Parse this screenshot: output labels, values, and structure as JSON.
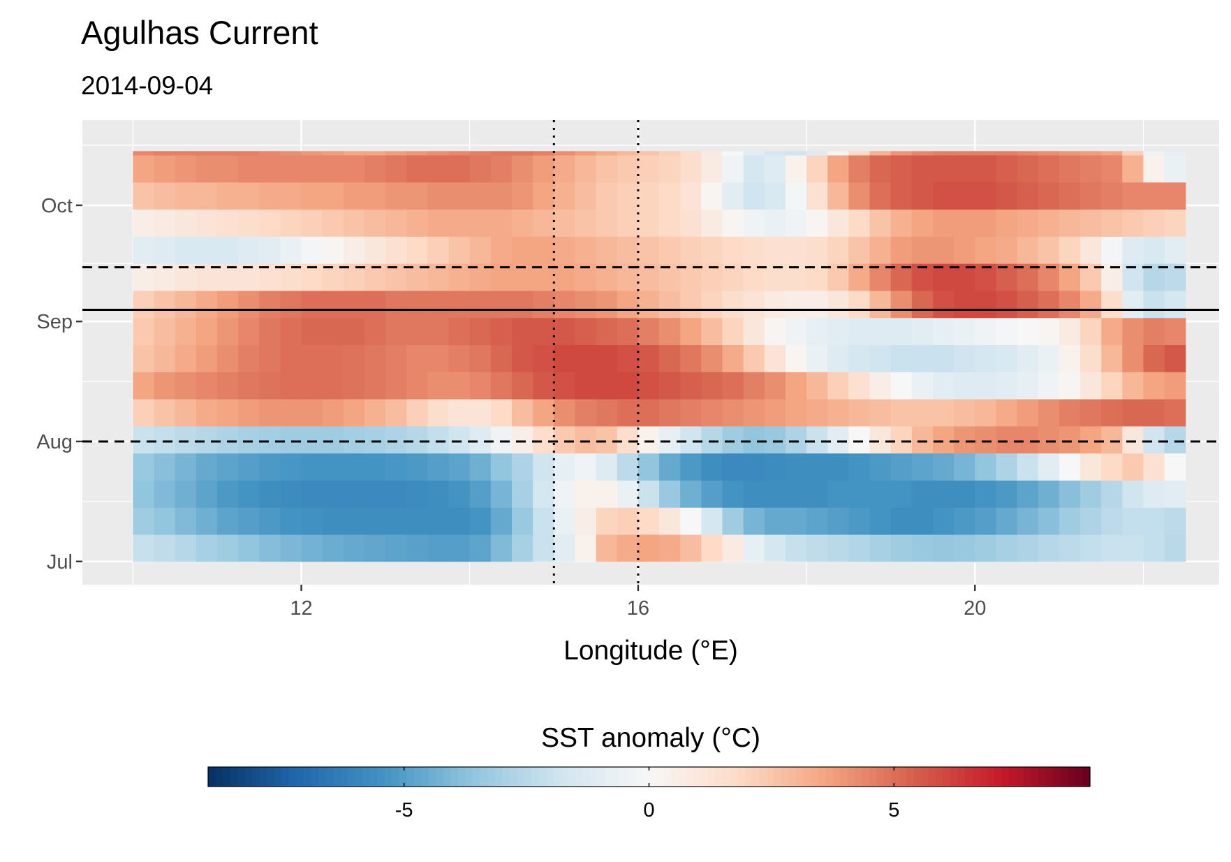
{
  "chart_data": {
    "type": "heatmap",
    "title": "Agulhas Current",
    "subtitle": "2014-09-04",
    "xlabel": "Longitude (°E)",
    "ylabel": "",
    "x_ticks": [
      12,
      16,
      20
    ],
    "y_ticks": [
      "Jul",
      "Aug",
      "Sep",
      "Oct"
    ],
    "y_tick_dates": [
      "2014-07-01",
      "2014-08-01",
      "2014-09-01",
      "2014-10-01"
    ],
    "xlim": [
      9.4,
      22.9
    ],
    "ylim": [
      "2014-06-25",
      "2014-10-23"
    ],
    "data_range": {
      "lon": [
        10.0,
        22.5
      ],
      "date": [
        "2014-07-01",
        "2014-10-15"
      ]
    },
    "grid": true,
    "legend": {
      "title": "SST anomaly (°C)",
      "position": "bottom",
      "ticks": [
        -5,
        0,
        5
      ],
      "tick_labels": [
        "-5",
        "0",
        "5"
      ],
      "limits": [
        -9,
        9
      ],
      "colors": {
        "neg": [
          "#053061",
          "#2166ac",
          "#4393c3",
          "#92c5de",
          "#d1e5f0",
          "#f7f7f7"
        ],
        "pos": [
          "#f7f7f7",
          "#fddbc7",
          "#f4a582",
          "#d6604d",
          "#c51a2a",
          "#67001f"
        ]
      }
    },
    "reference_lines": {
      "event_date": "2014-09-04",
      "window_dates": [
        "2014-08-01",
        "2014-09-15"
      ],
      "longitudes": [
        15.0,
        16.0
      ]
    },
    "x": [
      10.0,
      10.25,
      10.5,
      10.75,
      11.0,
      11.25,
      11.5,
      11.75,
      12.0,
      12.25,
      12.5,
      12.75,
      13.0,
      13.25,
      13.5,
      13.75,
      14.0,
      14.25,
      14.5,
      14.75,
      15.0,
      15.25,
      15.5,
      15.75,
      16.0,
      16.25,
      16.5,
      16.75,
      17.0,
      17.25,
      17.5,
      17.75,
      18.0,
      18.25,
      18.5,
      18.75,
      19.0,
      19.25,
      19.5,
      19.75,
      20.0,
      20.25,
      20.5,
      20.75,
      21.0,
      21.25,
      21.5,
      21.75,
      22.0,
      22.25
    ],
    "y": [
      "2014-07-01",
      "2014-07-08",
      "2014-07-15",
      "2014-07-22",
      "2014-07-29",
      "2014-08-05",
      "2014-08-12",
      "2014-08-19",
      "2014-08-26",
      "2014-09-02",
      "2014-09-09",
      "2014-09-16",
      "2014-09-23",
      "2014-09-30",
      "2014-10-07",
      "2014-10-14"
    ],
    "z": [
      [
        -2.1,
        -2.3,
        -2.6,
        -3.0,
        -3.2,
        -3.6,
        -3.9,
        -4.1,
        -4.3,
        -4.5,
        -4.6,
        -4.7,
        -4.8,
        -4.9,
        -5.0,
        -5.0,
        -4.8,
        -4.0,
        -3.0,
        -2.0,
        -1.0,
        0.4,
        3.0,
        3.4,
        3.6,
        3.4,
        2.8,
        1.8,
        0.8,
        -0.8,
        -1.6,
        -2.1,
        -2.3,
        -2.5,
        -2.7,
        -3.0,
        -3.2,
        -3.4,
        -3.5,
        -3.4,
        -3.2,
        -3.0,
        -2.8,
        -2.6,
        -2.4,
        -2.2,
        -2.0,
        -2.0,
        -2.2,
        -2.5
      ],
      [
        -3.2,
        -3.6,
        -4.0,
        -4.4,
        -4.8,
        -5.0,
        -5.2,
        -5.4,
        -5.5,
        -5.6,
        -5.6,
        -5.6,
        -5.6,
        -5.6,
        -5.6,
        -5.6,
        -5.4,
        -4.6,
        -3.4,
        -2.0,
        -0.6,
        0.6,
        2.0,
        2.2,
        1.8,
        1.0,
        0.0,
        -1.6,
        -3.2,
        -4.2,
        -4.6,
        -4.6,
        -4.8,
        -5.0,
        -5.2,
        -5.4,
        -5.6,
        -5.6,
        -5.4,
        -5.2,
        -5.0,
        -4.6,
        -4.2,
        -3.8,
        -3.2,
        -2.8,
        -2.4,
        -2.2,
        -2.2,
        -2.4
      ],
      [
        -3.6,
        -4.0,
        -4.4,
        -4.8,
        -5.2,
        -5.4,
        -5.6,
        -5.7,
        -5.8,
        -5.8,
        -5.8,
        -5.8,
        -5.8,
        -5.7,
        -5.6,
        -5.4,
        -5.0,
        -4.2,
        -3.0,
        -1.6,
        -0.4,
        0.4,
        0.4,
        -0.6,
        -2.0,
        -3.4,
        -4.4,
        -5.0,
        -5.4,
        -5.6,
        -5.6,
        -5.6,
        -5.6,
        -5.4,
        -5.4,
        -5.4,
        -5.4,
        -5.6,
        -5.6,
        -5.6,
        -5.4,
        -5.2,
        -4.8,
        -4.4,
        -3.8,
        -3.2,
        -2.6,
        -1.8,
        -1.2,
        -1.0
      ],
      [
        -3.4,
        -3.8,
        -4.2,
        -4.6,
        -4.8,
        -5.0,
        -5.2,
        -5.3,
        -5.4,
        -5.4,
        -5.4,
        -5.4,
        -5.3,
        -5.2,
        -5.0,
        -4.8,
        -4.4,
        -3.6,
        -2.8,
        -1.8,
        -0.8,
        -0.4,
        -1.2,
        -2.4,
        -3.6,
        -4.6,
        -5.2,
        -5.6,
        -5.8,
        -5.8,
        -5.7,
        -5.6,
        -5.6,
        -5.6,
        -5.4,
        -5.2,
        -5.0,
        -4.8,
        -4.6,
        -4.2,
        -3.6,
        -2.8,
        -2.0,
        -1.0,
        0.0,
        1.0,
        1.8,
        2.4,
        1.4,
        0.0
      ],
      [
        -2.0,
        -2.2,
        -2.4,
        -2.6,
        -2.8,
        -3.0,
        -3.1,
        -3.2,
        -3.2,
        -3.2,
        -3.1,
        -3.0,
        -2.8,
        -2.6,
        -2.2,
        -1.8,
        -1.2,
        -0.4,
        0.6,
        1.6,
        2.4,
        2.8,
        2.6,
        1.6,
        0.4,
        -0.8,
        -1.8,
        -2.6,
        -3.2,
        -3.6,
        -3.4,
        -2.8,
        -2.0,
        -1.0,
        0.0,
        1.0,
        2.0,
        3.0,
        3.6,
        4.0,
        4.2,
        4.4,
        4.4,
        4.2,
        4.0,
        3.6,
        3.0,
        1.0,
        -1.8,
        -2.6
      ],
      [
        2.2,
        2.6,
        3.0,
        3.4,
        3.6,
        3.8,
        4.0,
        4.0,
        4.0,
        3.8,
        3.6,
        3.2,
        2.8,
        2.2,
        1.6,
        1.2,
        1.2,
        1.8,
        2.8,
        3.6,
        4.2,
        4.6,
        4.8,
        5.0,
        5.0,
        4.8,
        4.6,
        4.4,
        4.2,
        4.0,
        3.8,
        3.6,
        3.4,
        3.2,
        3.0,
        2.8,
        2.6,
        2.6,
        2.6,
        2.8,
        3.0,
        3.4,
        3.8,
        4.2,
        4.6,
        4.8,
        5.0,
        5.2,
        5.2,
        5.0
      ],
      [
        3.6,
        4.0,
        4.2,
        4.4,
        4.6,
        4.8,
        4.9,
        5.0,
        5.0,
        5.0,
        4.9,
        4.8,
        4.6,
        4.4,
        4.2,
        4.2,
        4.4,
        4.8,
        5.2,
        5.6,
        5.8,
        6.0,
        6.0,
        6.0,
        5.8,
        5.6,
        5.4,
        5.2,
        5.0,
        4.6,
        4.2,
        3.6,
        3.0,
        2.2,
        1.4,
        0.6,
        0.0,
        -0.6,
        -1.0,
        -1.2,
        -1.2,
        -1.0,
        -0.8,
        -0.4,
        0.2,
        1.0,
        2.0,
        3.0,
        3.6,
        3.8
      ],
      [
        2.6,
        3.0,
        3.4,
        3.8,
        4.2,
        4.6,
        4.8,
        5.0,
        5.0,
        5.0,
        4.9,
        4.8,
        4.6,
        4.4,
        4.4,
        4.6,
        4.8,
        5.2,
        5.6,
        5.8,
        6.0,
        6.0,
        6.0,
        5.8,
        5.6,
        5.2,
        4.8,
        4.2,
        3.4,
        2.4,
        1.2,
        0.2,
        -0.6,
        -1.2,
        -1.6,
        -1.8,
        -2.0,
        -2.0,
        -2.0,
        -1.8,
        -1.6,
        -1.4,
        -1.0,
        -0.6,
        0.4,
        1.6,
        3.0,
        4.2,
        5.2,
        5.6
      ],
      [
        2.4,
        2.8,
        3.2,
        3.6,
        4.0,
        4.4,
        4.8,
        5.0,
        5.2,
        5.2,
        5.2,
        5.0,
        4.8,
        4.8,
        4.8,
        5.0,
        5.2,
        5.4,
        5.6,
        5.6,
        5.6,
        5.4,
        5.2,
        5.0,
        4.6,
        4.2,
        3.6,
        2.8,
        2.0,
        1.0,
        0.2,
        -0.4,
        -0.8,
        -1.0,
        -1.2,
        -1.2,
        -1.2,
        -1.0,
        -0.8,
        -0.6,
        -0.4,
        -0.2,
        0.0,
        0.2,
        0.8,
        2.0,
        3.4,
        4.2,
        4.6,
        4.4
      ],
      [
        2.2,
        2.6,
        3.0,
        3.4,
        3.8,
        4.2,
        4.6,
        4.8,
        5.0,
        5.0,
        5.0,
        5.0,
        4.8,
        4.8,
        4.8,
        4.8,
        4.8,
        4.8,
        4.8,
        4.6,
        4.4,
        4.2,
        4.0,
        3.6,
        3.2,
        2.8,
        2.4,
        2.0,
        1.6,
        1.2,
        0.8,
        0.6,
        0.6,
        1.0,
        1.8,
        3.0,
        4.2,
        5.2,
        5.8,
        6.0,
        6.0,
        5.8,
        5.4,
        5.0,
        4.4,
        3.4,
        1.6,
        -1.0,
        -2.0,
        -1.6
      ],
      [
        0.6,
        0.8,
        1.0,
        1.2,
        1.2,
        1.2,
        1.4,
        1.6,
        1.8,
        2.0,
        2.2,
        2.4,
        2.6,
        2.8,
        3.0,
        3.2,
        3.4,
        3.6,
        3.6,
        3.6,
        3.6,
        3.4,
        3.2,
        3.0,
        2.8,
        2.6,
        2.4,
        2.2,
        2.0,
        1.8,
        1.6,
        1.6,
        1.8,
        2.4,
        3.4,
        4.4,
        5.2,
        5.8,
        6.0,
        6.0,
        5.8,
        5.4,
        5.0,
        4.4,
        3.6,
        2.4,
        0.6,
        -1.8,
        -2.6,
        -2.4
      ],
      [
        -1.0,
        -1.2,
        -1.4,
        -1.4,
        -1.4,
        -1.2,
        -1.0,
        -0.6,
        -0.2,
        0.2,
        0.6,
        1.0,
        1.4,
        1.8,
        2.2,
        2.6,
        3.0,
        3.4,
        3.6,
        3.6,
        3.4,
        3.2,
        3.0,
        2.8,
        2.6,
        2.4,
        2.2,
        2.0,
        1.8,
        1.6,
        1.4,
        1.4,
        1.6,
        2.0,
        2.6,
        3.2,
        3.8,
        4.0,
        4.0,
        3.8,
        3.6,
        3.4,
        3.0,
        2.6,
        2.0,
        1.0,
        -0.2,
        -1.2,
        -1.4,
        -1.0
      ],
      [
        0.6,
        0.8,
        1.0,
        1.2,
        1.4,
        1.6,
        1.8,
        2.0,
        2.2,
        2.4,
        2.6,
        2.8,
        3.0,
        3.2,
        3.4,
        3.4,
        3.4,
        3.4,
        3.2,
        3.0,
        2.8,
        2.6,
        2.4,
        2.2,
        2.0,
        1.8,
        1.4,
        0.8,
        0.2,
        -0.4,
        -0.6,
        -0.4,
        0.2,
        1.0,
        1.8,
        2.6,
        3.2,
        3.6,
        3.8,
        3.8,
        3.8,
        3.6,
        3.4,
        3.2,
        3.0,
        2.8,
        2.6,
        2.4,
        2.2,
        2.0
      ],
      [
        2.6,
        2.8,
        3.0,
        3.0,
        3.2,
        3.2,
        3.4,
        3.4,
        3.6,
        3.6,
        3.8,
        3.8,
        4.0,
        4.0,
        4.2,
        4.2,
        4.2,
        4.2,
        4.0,
        3.6,
        3.2,
        2.8,
        2.4,
        2.2,
        2.0,
        1.8,
        1.2,
        0.2,
        -1.0,
        -1.8,
        -1.4,
        -0.2,
        1.4,
        3.0,
        4.2,
        5.0,
        5.4,
        5.6,
        5.8,
        5.8,
        5.8,
        5.6,
        5.4,
        5.2,
        5.0,
        4.8,
        4.6,
        4.4,
        4.4,
        4.4
      ],
      [
        3.6,
        3.8,
        4.0,
        4.2,
        4.2,
        4.4,
        4.4,
        4.4,
        4.4,
        4.4,
        4.4,
        4.6,
        4.8,
        5.0,
        5.0,
        5.0,
        4.8,
        4.6,
        4.2,
        3.8,
        3.4,
        3.0,
        2.6,
        2.4,
        2.2,
        2.0,
        1.6,
        0.8,
        -0.4,
        -1.6,
        -1.2,
        0.4,
        2.0,
        3.6,
        4.6,
        5.2,
        5.4,
        5.6,
        5.6,
        5.6,
        5.6,
        5.4,
        5.2,
        5.0,
        4.8,
        4.6,
        4.4,
        3.2,
        0.4,
        -0.6
      ],
      [
        4.4,
        4.6,
        4.6,
        4.6,
        4.6,
        4.6,
        4.4,
        4.2,
        4.0,
        3.8,
        3.6,
        3.6,
        3.8,
        4.0,
        4.2,
        4.4,
        4.6,
        4.8,
        4.8,
        4.6,
        4.2,
        3.8,
        3.4,
        3.0,
        2.6,
        2.2,
        1.6,
        0.8,
        0.0,
        -1.0,
        -1.6,
        -1.8,
        -1.2,
        0.2,
        1.8,
        3.2,
        4.0,
        4.4,
        4.6,
        4.6,
        4.6,
        4.6,
        4.4,
        4.2,
        4.0,
        3.8,
        3.6,
        2.2,
        -0.4,
        -0.8
      ]
    ]
  }
}
